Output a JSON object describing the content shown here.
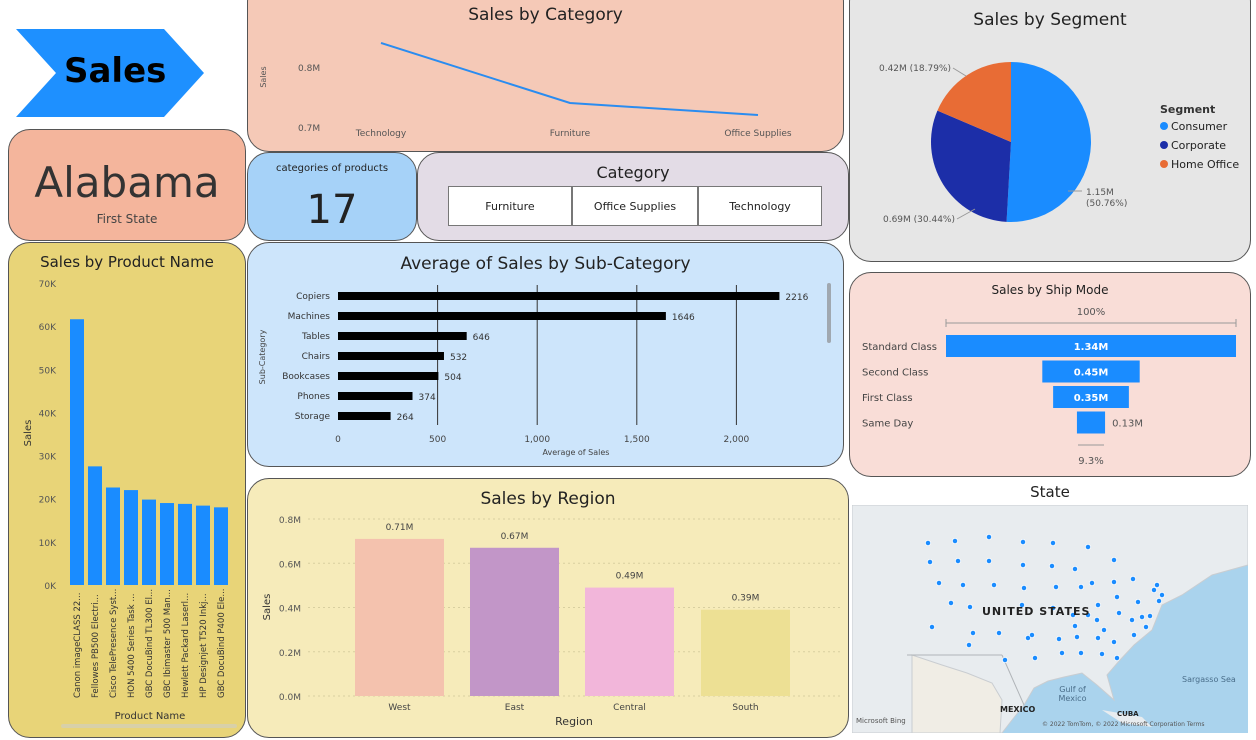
{
  "banner": {
    "title": "Sales",
    "color": "#1e90ff"
  },
  "state_card": {
    "state": "Alabama",
    "subtitle": "First State"
  },
  "kpi": {
    "label": "categories of products",
    "value": "17"
  },
  "category_slicer": {
    "title": "Category",
    "options": [
      "Furniture",
      "Office Supplies",
      "Technology"
    ]
  },
  "sales_by_category": {
    "title": "Sales by Category",
    "chart_data": {
      "type": "line",
      "categories": [
        "Technology",
        "Furniture",
        "Office Supplies"
      ],
      "values": [
        0.84,
        0.74,
        0.72
      ],
      "ylabel": "Sales",
      "yticks": [
        "0.8M",
        "0.7M"
      ],
      "tick_values": [
        0.8,
        0.7
      ],
      "ylim": [
        0.68,
        0.88
      ],
      "color": "#2a8cf0"
    }
  },
  "sales_by_segment": {
    "title": "Sales by Segment",
    "chart_data": {
      "type": "pie",
      "legend_title": "Segment",
      "labels": [
        "Consumer",
        "Corporate",
        "Home Office"
      ],
      "values": [
        1.15,
        0.69,
        0.42
      ],
      "percents": [
        50.76,
        30.44,
        18.79
      ],
      "data_labels": [
        "1.15M (50.76%)",
        "0.69M (30.44%)",
        "0.42M (18.79%)"
      ],
      "colors": [
        "#1a8cff",
        "#1c2ea8",
        "#e86c35"
      ],
      "legend_position": "right"
    }
  },
  "sales_by_product": {
    "title": "Sales by Product Name",
    "chart_data": {
      "type": "bar",
      "categories": [
        "Canon imageCLASS 22...",
        "Fellowes PB500 Electri...",
        "Cisco TelePresence Syst...",
        "HON 5400 Series Task ...",
        "GBC DocuBind TL300 El...",
        "GBC Ibimaster 500 Man...",
        "Hewlett Packard Laserl...",
        "HP Designjet T520 Inkj...",
        "GBC DocuBind P400 Ele..."
      ],
      "values": [
        61600,
        27500,
        22600,
        22000,
        19800,
        19000,
        18800,
        18400,
        18000
      ],
      "ylim": [
        0,
        70000
      ],
      "yticks": [
        "0K",
        "10K",
        "20K",
        "30K",
        "40K",
        "50K",
        "60K",
        "70K"
      ],
      "ylabel": "Sales",
      "xlabel": "Product Name",
      "color": "#1a8cff"
    }
  },
  "avg_sales_subcat": {
    "title": "Average of Sales by Sub-Category",
    "chart_data": {
      "type": "bar",
      "orientation": "horizontal",
      "categories": [
        "Copiers",
        "Machines",
        "Tables",
        "Chairs",
        "Bookcases",
        "Phones",
        "Storage"
      ],
      "values": [
        2216,
        1646,
        646,
        532,
        504,
        374,
        264
      ],
      "xlim": [
        0,
        2500
      ],
      "xticks": [
        "0",
        "500",
        "1,000",
        "1,500",
        "2,000"
      ],
      "xlabel": "Average of Sales",
      "ylabel": "Sub-Category",
      "color": "#000000"
    }
  },
  "sales_by_shipmode": {
    "title": "Sales by Ship Mode",
    "chart_data": {
      "type": "funnel",
      "categories": [
        "Standard Class",
        "Second Class",
        "First Class",
        "Same Day"
      ],
      "values": [
        1.34,
        0.45,
        0.35,
        0.13
      ],
      "data_labels": [
        "1.34M",
        "0.45M",
        "0.35M",
        "0.13M"
      ],
      "top_percent": "100%",
      "bottom_percent": "9.3%",
      "color": "#1a8cff"
    }
  },
  "sales_by_region": {
    "title": "Sales by Region",
    "chart_data": {
      "type": "bar",
      "categories": [
        "West",
        "East",
        "Central",
        "South"
      ],
      "values": [
        0.71,
        0.67,
        0.49,
        0.39
      ],
      "data_labels": [
        "0.71M",
        "0.67M",
        "0.49M",
        "0.39M"
      ],
      "colors": [
        "#f4c2ae",
        "#c296c8",
        "#f2b6da",
        "#ede094"
      ],
      "ylim": [
        0,
        0.8
      ],
      "yticks": [
        "0.0M",
        "0.2M",
        "0.4M",
        "0.6M",
        "0.8M"
      ],
      "ylabel": "Sales",
      "xlabel": "Region"
    }
  },
  "state_map": {
    "title": "State",
    "labels": {
      "country": "UNITED STATES",
      "mexico": "MEXICO",
      "gulf": "Gulf of\nMexico",
      "sargasso": "Sargasso Sea",
      "cuba": "CUBA"
    },
    "attribution": "© 2022 TomTom, © 2022 Microsoft Corporation  Terms",
    "bing": "Microsoft Bing"
  }
}
